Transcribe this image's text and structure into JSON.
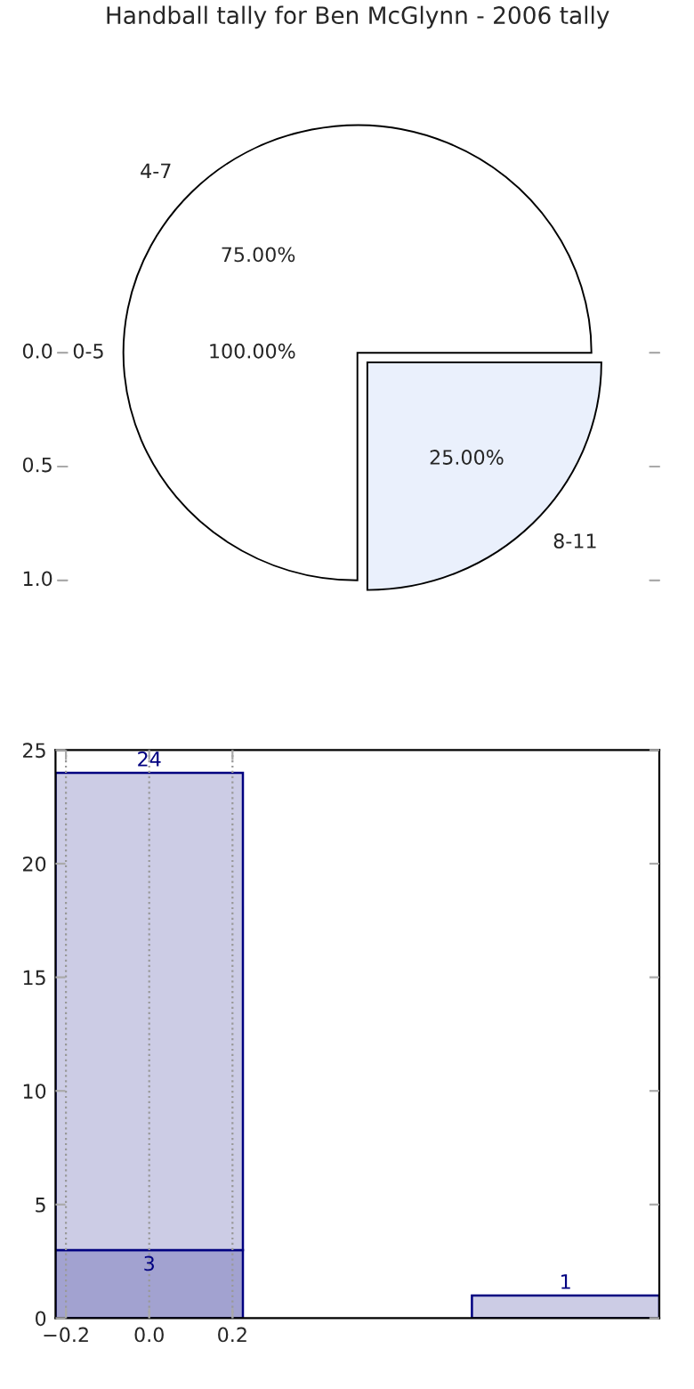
{
  "chart_data": [
    {
      "type": "pie",
      "title": "Handball tally for Ben McGlynn - 2006 tally",
      "categories": [
        "4-7",
        "8-11"
      ],
      "values": [
        75,
        25
      ],
      "colors": [
        "#ffffff",
        "#eaf0fc"
      ],
      "value_labels": [
        "75.00%",
        "25.00%"
      ],
      "annotations": [
        "0-5",
        "100.00%",
        "0.0",
        "0.5",
        "1.0"
      ]
    },
    {
      "type": "bar",
      "x": [
        0,
        1
      ],
      "stacked": true,
      "series": [
        {
          "color": "#a2a2d0",
          "values": [
            3,
            null
          ],
          "value_labels": [
            "3",
            null
          ]
        },
        {
          "color": "#ccccE5",
          "values": [
            21,
            1
          ]
        }
      ],
      "totals": [
        "24",
        "1"
      ],
      "xlim": [
        -0.225,
        1.225
      ],
      "xticks": [
        {
          "value": -0.2,
          "label": "−0.2"
        },
        {
          "value": 0.0,
          "label": "0.0"
        },
        {
          "value": 0.2,
          "label": "0.2"
        }
      ],
      "ylim": [
        0,
        25
      ],
      "yticks": [
        0,
        5,
        10,
        15,
        20,
        25
      ],
      "grid": "x"
    }
  ]
}
